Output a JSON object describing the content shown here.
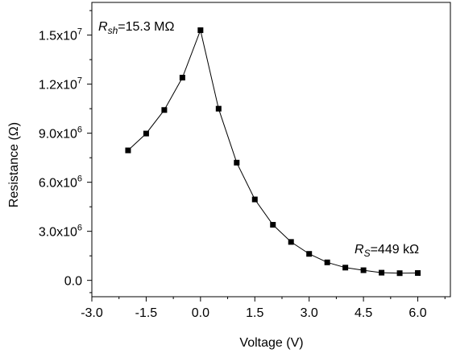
{
  "chart_data": {
    "type": "line",
    "xlabel": "Voltage (V)",
    "ylabel": "Resistance (Ω)",
    "xlim": [
      -3.0,
      6.9
    ],
    "ylim": [
      -1000000,
      17000000
    ],
    "x_ticks": [
      -3.0,
      -1.5,
      0.0,
      1.5,
      3.0,
      4.5,
      6.0
    ],
    "x_tick_labels": [
      "-3.0",
      "-1.5",
      "0.0",
      "1.5",
      "3.0",
      "4.5",
      "6.0"
    ],
    "y_ticks": [
      0,
      3000000,
      6000000,
      9000000,
      12000000,
      15000000
    ],
    "y_tick_labels": [
      {
        "mantissa": "0.0",
        "exp": ""
      },
      {
        "mantissa": "3.0x10",
        "exp": "6"
      },
      {
        "mantissa": "6.0x10",
        "exp": "6"
      },
      {
        "mantissa": "9.0x10",
        "exp": "6"
      },
      {
        "mantissa": "1.2x10",
        "exp": "7"
      },
      {
        "mantissa": "1.5x10",
        "exp": "7"
      }
    ],
    "grid": false,
    "legend": "none",
    "series": [
      {
        "marker": "square",
        "color": "#000000",
        "x": [
          -2.0,
          -1.5,
          -1.0,
          -0.5,
          0.0,
          0.5,
          1.0,
          1.5,
          2.0,
          2.5,
          3.0,
          3.5,
          4.0,
          4.5,
          5.0,
          5.5,
          6.0
        ],
        "values": [
          7950000,
          8980000,
          10420000,
          12400000,
          15300000,
          10500000,
          7200000,
          4950000,
          3400000,
          2350000,
          1620000,
          1100000,
          780000,
          620000,
          470000,
          440000,
          449000
        ]
      }
    ],
    "annotations": [
      {
        "main": "R",
        "sub": "sh",
        "rest": "=15.3 MΩ"
      },
      {
        "main": "R",
        "sub": "S",
        "rest": "=449 kΩ"
      }
    ]
  }
}
